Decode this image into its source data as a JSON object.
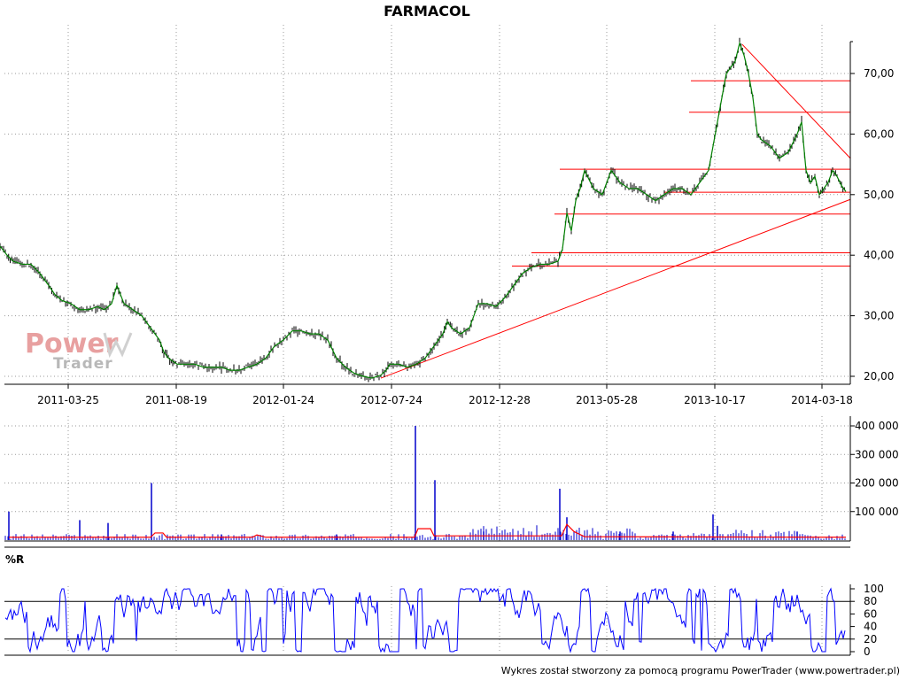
{
  "chart_data": [
    {
      "panel": "price",
      "type": "line",
      "title": "FARMACOL",
      "x_tick_labels": [
        "2011-03-25",
        "2011-08-19",
        "2012-01-24",
        "2012-07-24",
        "2012-12-28",
        "2013-05-28",
        "2013-10-17",
        "2014-03-18"
      ],
      "y_tick_labels": [
        "20,00",
        "30,00",
        "40,00",
        "50,00",
        "60,00",
        "70,00"
      ],
      "ylim": [
        18.5,
        75.5
      ],
      "grid": true,
      "series": [
        {
          "color": "#008000",
          "x": [
            0,
            8,
            15,
            25,
            35,
            45,
            55,
            62,
            70,
            80,
            90,
            100,
            110,
            118,
            126,
            132,
            140,
            150,
            160,
            170,
            180,
            185,
            190,
            195,
            200,
            210,
            220,
            230,
            240,
            250,
            260,
            270,
            280,
            290,
            300,
            310,
            320,
            330,
            340,
            350,
            360,
            370,
            380,
            390,
            400,
            410,
            420,
            430,
            436,
            440,
            450,
            460,
            470,
            480,
            490,
            500,
            505,
            510,
            520,
            530,
            540,
            550,
            560,
            570,
            580,
            590,
            600,
            610,
            620,
            630,
            635,
            640,
            645,
            650,
            655,
            660,
            670,
            680,
            690,
            700,
            710,
            720,
            730,
            740,
            750,
            760,
            770,
            780,
            790,
            800,
            805,
            810,
            815,
            820,
            825,
            830,
            835,
            840,
            845,
            850,
            855,
            860,
            870,
            880,
            890,
            900,
            905,
            910,
            915,
            920,
            925,
            930,
            935,
            940,
            945,
            950,
            955
          ],
          "y": [
            41.5,
            40,
            39,
            38.5,
            38.5,
            37,
            35,
            33.5,
            32.5,
            32,
            31,
            31,
            31.5,
            31,
            32,
            35,
            32,
            31,
            30,
            28,
            26,
            24,
            23,
            22.5,
            22,
            22,
            22,
            21.5,
            21.5,
            21.5,
            21,
            21,
            21.5,
            22,
            23,
            25,
            26,
            27.5,
            27.5,
            27,
            27,
            26,
            23,
            21.5,
            20.5,
            20,
            19.7,
            20.2,
            21,
            22,
            22,
            21.5,
            22,
            23,
            25,
            27,
            29,
            28,
            27,
            28,
            32,
            32,
            31.5,
            33,
            35,
            37,
            38,
            38.5,
            38.5,
            39,
            41,
            47,
            44,
            49,
            51,
            54,
            51,
            50,
            54,
            52,
            51,
            51,
            50,
            49,
            50,
            51,
            51,
            50,
            52,
            54,
            58,
            62,
            66,
            70,
            71,
            72,
            75,
            73,
            70,
            66,
            60,
            59,
            58,
            56,
            57,
            60,
            62,
            54,
            52,
            53,
            50,
            51,
            52,
            54,
            53,
            51.5,
            50.5
          ]
        }
      ],
      "trend_lines": [
        {
          "from": [
            430,
            19.7
          ],
          "to": [
            960,
            49.2
          ]
        },
        {
          "from": [
            838,
            74.8
          ],
          "to": [
            960,
            56.0
          ]
        }
      ],
      "support_resistance_levels": [
        {
          "level": 68.8,
          "x_start": 780
        },
        {
          "level": 63.6,
          "x_start": 778
        },
        {
          "level": 54.2,
          "x_start": 632
        },
        {
          "level": 50.4,
          "x_start": 750
        },
        {
          "level": 46.8,
          "x_start": 626
        },
        {
          "level": 40.4,
          "x_start": 600
        },
        {
          "level": 38.2,
          "x_start": 578
        }
      ]
    },
    {
      "panel": "volume",
      "type": "bar",
      "y_tick_labels": [
        "100 000",
        "200 000",
        "300 000",
        "400 000"
      ],
      "ylim": [
        0,
        400000
      ],
      "bar_color": "#0000CC",
      "ma_color": "#FF0000",
      "bars": [
        {
          "x": 10,
          "v": 100000
        },
        {
          "x": 90,
          "v": 70000
        },
        {
          "x": 122,
          "v": 60000
        },
        {
          "x": 171,
          "v": 200000
        },
        {
          "x": 250,
          "v": 20000
        },
        {
          "x": 380,
          "v": 20000
        },
        {
          "x": 469,
          "v": 400000
        },
        {
          "x": 491,
          "v": 210000
        },
        {
          "x": 546,
          "v": 30000
        },
        {
          "x": 632,
          "v": 180000
        },
        {
          "x": 640,
          "v": 80000
        },
        {
          "x": 700,
          "v": 30000
        },
        {
          "x": 760,
          "v": 30000
        },
        {
          "x": 805,
          "v": 90000
        },
        {
          "x": 810,
          "v": 50000
        },
        {
          "x": 900,
          "v": 30000
        }
      ],
      "moving_average": [
        {
          "x": 10,
          "v": 10000
        },
        {
          "x": 170,
          "v": 10000
        },
        {
          "x": 175,
          "v": 25000
        },
        {
          "x": 184,
          "v": 25000
        },
        {
          "x": 188,
          "v": 10000
        },
        {
          "x": 285,
          "v": 10000
        },
        {
          "x": 290,
          "v": 18000
        },
        {
          "x": 300,
          "v": 10000
        },
        {
          "x": 468,
          "v": 10000
        },
        {
          "x": 472,
          "v": 40000
        },
        {
          "x": 486,
          "v": 40000
        },
        {
          "x": 490,
          "v": 15000
        },
        {
          "x": 634,
          "v": 15000
        },
        {
          "x": 640,
          "v": 55000
        },
        {
          "x": 648,
          "v": 30000
        },
        {
          "x": 660,
          "v": 12000
        },
        {
          "x": 955,
          "v": 10000
        }
      ]
    },
    {
      "panel": "williams_r",
      "type": "line",
      "label": "%R",
      "y_tick_labels": [
        "0",
        "20",
        "40",
        "60",
        "80",
        "100"
      ],
      "ylim": [
        0,
        100
      ],
      "reference_lines": [
        20,
        80
      ],
      "color": "#0000FF"
    }
  ],
  "watermark": {
    "power": "Power",
    "trader": "Trader"
  },
  "footer": "Wykres został stworzony za pomocą programu PowerTrader (www.powertrader.pl)",
  "colors": {
    "price_line": "#008000",
    "overlay": "#FF0000",
    "volume_bar": "#0000CC",
    "indicator": "#0000FF",
    "grid": "#9A9A9A",
    "watermark_red": "#E8A0A0",
    "watermark_gray": "#B8B8B8"
  }
}
